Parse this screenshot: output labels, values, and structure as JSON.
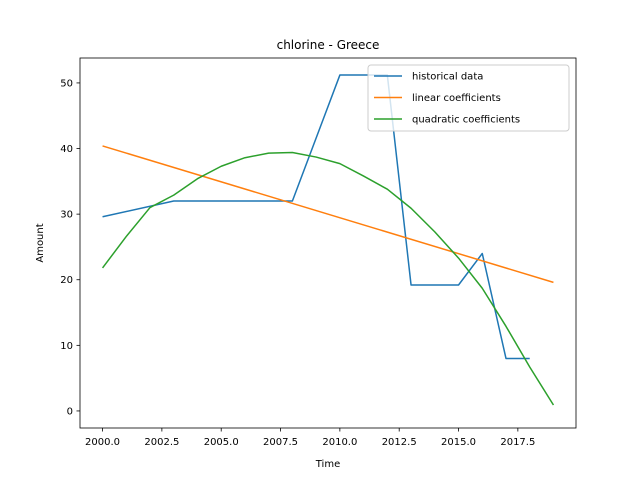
{
  "chart_data": {
    "type": "line",
    "title": "chlorine - Greece",
    "xlabel": "Time",
    "ylabel": "Amount",
    "xlim": [
      1999.05,
      2019.95
    ],
    "ylim": [
      -2.6,
      53.8
    ],
    "xticks": [
      2000.0,
      2002.5,
      2005.0,
      2007.5,
      2010.0,
      2012.5,
      2015.0,
      2017.5
    ],
    "xtick_labels": [
      "2000.0",
      "2002.5",
      "2005.0",
      "2007.5",
      "2010.0",
      "2012.5",
      "2015.0",
      "2017.5"
    ],
    "yticks": [
      0,
      10,
      20,
      30,
      40,
      50
    ],
    "ytick_labels": [
      "0",
      "10",
      "20",
      "30",
      "40",
      "50"
    ],
    "legend_position": "top-right",
    "series": [
      {
        "name": "historical data",
        "color": "#1f77b4",
        "x": [
          2000,
          2003,
          2004,
          2005,
          2006,
          2007,
          2008,
          2010,
          2011,
          2012,
          2013,
          2014,
          2015,
          2016,
          2017,
          2018
        ],
        "y": [
          29.6,
          32.0,
          32.0,
          32.0,
          32.0,
          32.0,
          32.0,
          51.2,
          51.2,
          51.2,
          19.2,
          19.2,
          19.2,
          24.0,
          8.0,
          8.0
        ]
      },
      {
        "name": "linear coefficients",
        "color": "#ff7f0e",
        "x": [
          2000,
          2019
        ],
        "y": [
          40.4,
          19.6
        ]
      },
      {
        "name": "quadratic coefficients",
        "color": "#2ca02c",
        "x": [
          2000,
          2001,
          2002,
          2003,
          2004,
          2005,
          2006,
          2007,
          2008,
          2009,
          2010,
          2011,
          2012,
          2013,
          2014,
          2015,
          2016,
          2017,
          2018,
          2019
        ],
        "y": [
          21.8,
          26.6,
          31.0,
          32.9,
          35.4,
          37.3,
          38.6,
          39.3,
          39.4,
          38.7,
          37.7,
          35.8,
          33.8,
          30.9,
          27.3,
          23.3,
          18.7,
          12.9,
          6.7,
          0.9
        ]
      }
    ]
  }
}
